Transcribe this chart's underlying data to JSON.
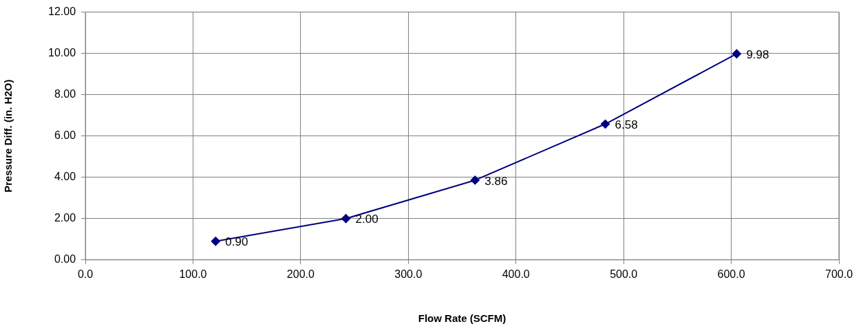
{
  "chart_data": {
    "type": "line",
    "xlabel": "Flow Rate (SCFM)",
    "ylabel": "Pressure Diff. (in. H2O)",
    "x": [
      121,
      242,
      362,
      483,
      605
    ],
    "series": [
      {
        "color": "#000080",
        "values": [
          0.9,
          2,
          3.86,
          6.58,
          9.98
        ],
        "value_labels": [
          "0.90",
          "2.00",
          "3.86",
          "6.58",
          "9.98"
        ]
      }
    ],
    "xlim": [
      0,
      700
    ],
    "xticks": [
      {
        "value": 0,
        "label": "0.0"
      },
      {
        "value": 100,
        "label": "100.0"
      },
      {
        "value": 200,
        "label": "200.0"
      },
      {
        "value": 300,
        "label": "300.0"
      },
      {
        "value": 400,
        "label": "400.0"
      },
      {
        "value": 500,
        "label": "500.0"
      },
      {
        "value": 600,
        "label": "600.0"
      },
      {
        "value": 700,
        "label": "700.0"
      }
    ],
    "ylim": [
      0,
      12
    ],
    "yticks": [
      {
        "value": 0,
        "label": "0.00"
      },
      {
        "value": 2,
        "label": "2.00"
      },
      {
        "value": 4,
        "label": "4.00"
      },
      {
        "value": 6,
        "label": "6.00"
      },
      {
        "value": 8,
        "label": "8.00"
      },
      {
        "value": 10,
        "label": "10.00"
      },
      {
        "value": 12,
        "label": "12.00"
      }
    ],
    "grid": true,
    "legend": false,
    "marker": "diamond",
    "line_style": "solid"
  }
}
